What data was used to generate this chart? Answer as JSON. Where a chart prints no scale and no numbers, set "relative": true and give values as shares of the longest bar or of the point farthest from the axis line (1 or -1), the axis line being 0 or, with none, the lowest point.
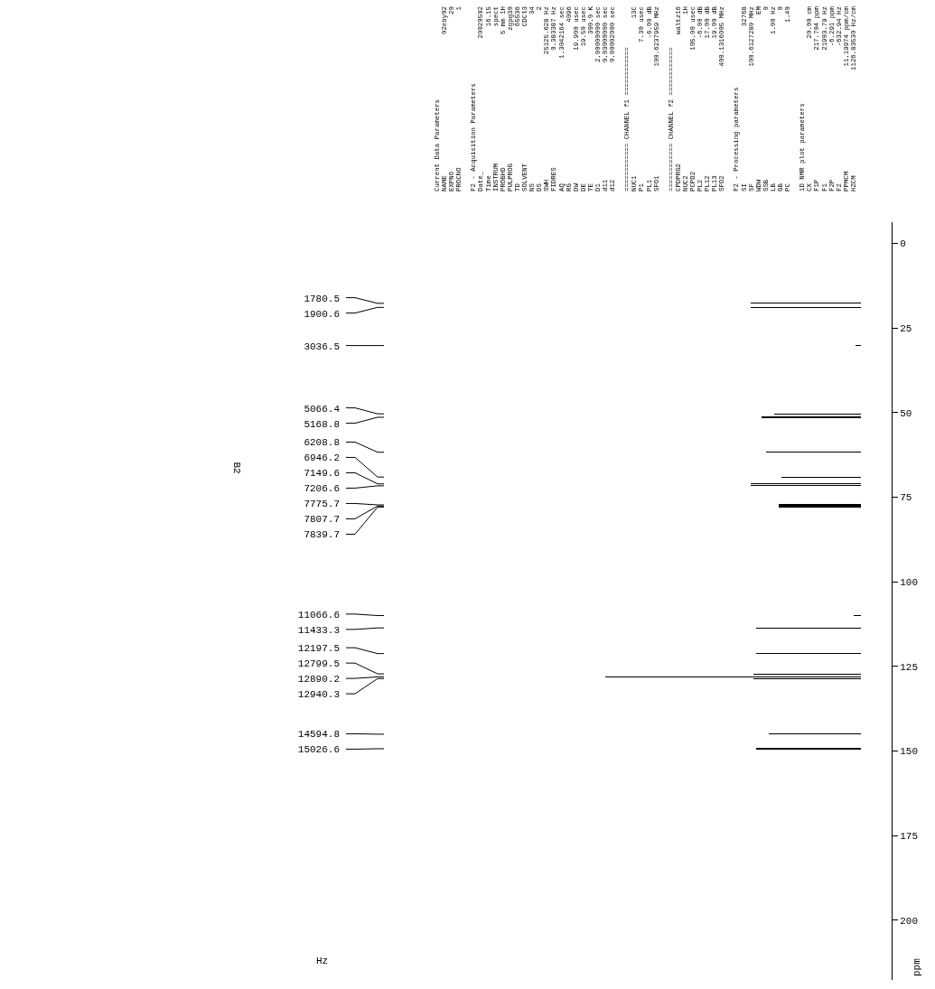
{
  "chart_data": {
    "type": "bar",
    "title": "B2",
    "ylabel": "ppm",
    "relative": true,
    "color": "#000000",
    "grid": false,
    "orientation": "horizontal",
    "ylim": [
      217.704,
      -6.291
    ],
    "yticks": [
      0,
      25,
      50,
      75,
      100,
      125,
      150,
      175,
      200
    ],
    "x": [
      17.7,
      18.89,
      30.18,
      50.36,
      51.37,
      61.71,
      69.04,
      71.06,
      71.63,
      77.28,
      77.6,
      77.92,
      109.99,
      113.64,
      121.23,
      127.22,
      128.12,
      128.62,
      145.06,
      149.35
    ],
    "values": [
      0.43,
      0.43,
      0.02,
      0.34,
      0.39,
      0.37,
      0.31,
      0.43,
      0.43,
      0.32,
      0.32,
      0.32,
      0.03,
      0.41,
      0.41,
      0.42,
      1.0,
      0.42,
      0.36,
      0.41
    ],
    "annotations": [
      "1780.5",
      "1900.6",
      "3036.5",
      "5066.4",
      "5168.8",
      "6208.8",
      "6946.2",
      "7149.6",
      "7206.6",
      "7775.7",
      "7807.7",
      "7839.7",
      "11066.6",
      "11433.3",
      "12197.5",
      "12799.5",
      "12890.2",
      "12940.3",
      "14594.8",
      "15026.6",
      "Current Data Parameters",
      "NAME\t02eby02",
      "EXPNO\t20",
      "PROCNO\t1",
      "F2 - Acquisition Parameters",
      "Date_\t20020502",
      "Time\t16.15",
      "INSTRUM\tspect",
      "PROBHD\t5 mm 1H",
      "PULPROG\tzgpg30",
      "TD\t65536",
      "SOLVENT\tCDCl3",
      "NS\t34",
      "DS\t2",
      "SWH\t25125.628 Hz",
      "FIDRES\t0.383387 Hz",
      "AQ\t1.3042164 sec",
      "RG\t4096",
      "DW\t19.900 usec",
      "DE\t19.50 usec",
      "TE\t300.0 K",
      "D1\t2.00000000 sec",
      "d11\t0.03000000 sec",
      "d12\t0.00002000 sec",
      "============ CHANNEL f1 ============",
      "NUC1\t13C",
      "P1\t7.30 usec",
      "PL1\t-6.00 dB",
      "SFO1\t100.6237959 MHz",
      "============ CHANNEL f2 ============",
      "CPDPRG2\twaltz16",
      "NUC2\t1H",
      "PCPD2\t105.00 usec",
      "PL2\t-6.00 dB",
      "PL12\t17.00 dB",
      "PL13\t19.00 dB",
      "SFO2\t400.1316005 MHz",
      "F2 - Processing parameters",
      "SI\t32768",
      "SF\t100.6127280 MHz",
      "WDW\tEM",
      "SSB\t0",
      "LB\t1.00 Hz",
      "GB\t0",
      "PC\t1.40",
      "1D NMR plot parameters",
      "CX\t20.00 cm",
      "F1P\t217.704 ppm",
      "F1\t21903.79 Hz",
      "F2P\t-6.291 ppm",
      "F2\t-632.94 Hz",
      "PPMCM\t11.19974 ppm/cm",
      "HZCM\t1126.83530 Hz/cm",
      "Hz"
    ]
  }
}
